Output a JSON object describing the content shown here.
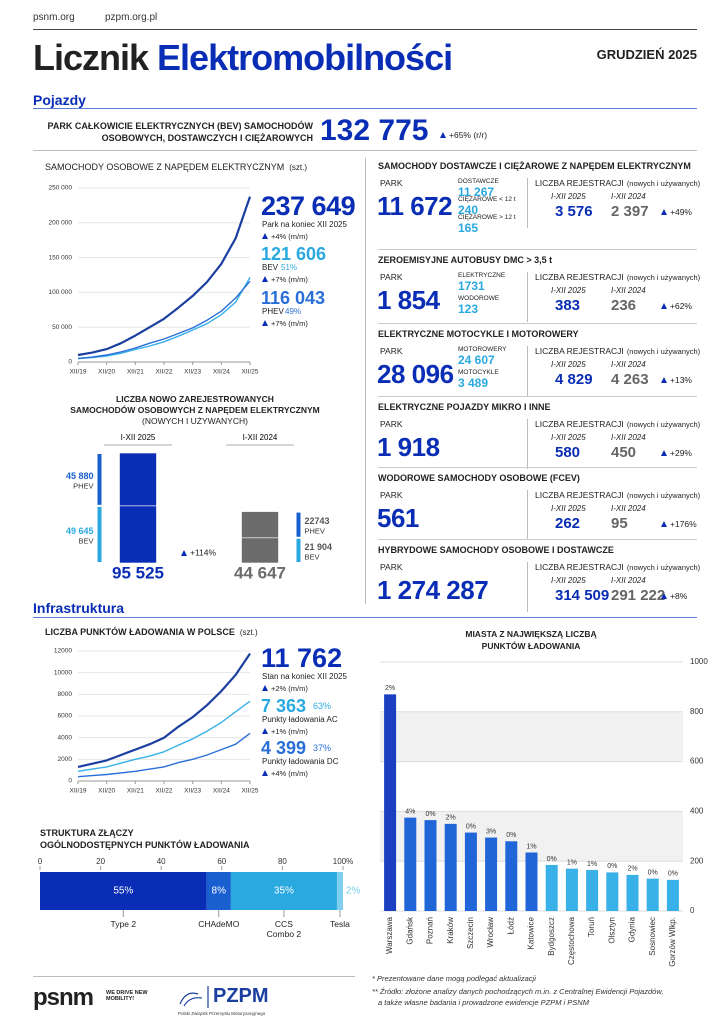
{
  "header": {
    "links": [
      "psnm.org",
      "pzpm.org.pl"
    ],
    "title": [
      "Licznik",
      "Elektromobilności"
    ],
    "date": "GRUDZIEŃ 2025"
  },
  "vehicles": {
    "heading": "Pojazdy",
    "bev_park": {
      "label": [
        "PARK CAŁKOWICIE ELEKTRYCZNYCH (BEV) SAMOCHODÓW",
        "OSOBOWYCH, DOSTAWCZYCH I CIĘŻAROWYCH"
      ],
      "value": "132 775",
      "change": "+65% (r/r)"
    },
    "passenger": {
      "total": "237 649",
      "total_label": "Park na koniec XII 2025",
      "total_change": "+4% (m/m)",
      "bev": "121 606",
      "bev_name": "BEV",
      "bev_share": "51%",
      "bev_change": "+7% (m/m)",
      "phev": "116 043",
      "phev_name": "PHEV",
      "phev_share": "49%",
      "phev_change": "+7% (m/m)"
    },
    "sections": [
      {
        "title": "SAMOCHODY DOSTAWCZE I CIĘŻAROWE Z NAPĘDEM ELEKTRYCZNYM",
        "park_label": "PARK",
        "park": "11 672",
        "breakdown": [
          {
            "label": "DOSTAWCZE",
            "value": "11 267"
          },
          {
            "label": "CIĘŻAROWE < 12 t",
            "value": "240"
          },
          {
            "label": "CIĘŻAROWE > 12 t",
            "value": "165"
          }
        ],
        "reg_label": "LICZBA REJESTRACJI",
        "reg_note": "(nowych i używanych)",
        "periods": [
          "I-XII 2025",
          "I-XII 2024"
        ],
        "registrations": [
          "3 576",
          "2 397"
        ],
        "change": "+49%"
      },
      {
        "title": "ZEROEMISYJNE AUTOBUSY DMC > 3,5 t",
        "park_label": "PARK",
        "park": "1 854",
        "breakdown": [
          {
            "label": "ELEKTRYCZNE",
            "value": "1731"
          },
          {
            "label": "WODOROWE",
            "value": "123"
          }
        ],
        "reg_label": "LICZBA REJESTRACJI",
        "reg_note": "(nowych i używanych)",
        "periods": [
          "I-XII 2025",
          "I-XII 2024"
        ],
        "registrations": [
          "383",
          "236"
        ],
        "change": "+62%"
      },
      {
        "title": "ELEKTRYCZNE MOTOCYKLE I MOTOROWERY",
        "park_label": "PARK",
        "park": "28 096",
        "breakdown": [
          {
            "label": "MOTOROWERY",
            "value": "24 607"
          },
          {
            "label": "MOTOCYKLE",
            "value": "3 489"
          }
        ],
        "reg_label": "LICZBA REJESTRACJI",
        "reg_note": "(nowych i używanych)",
        "periods": [
          "I-XII 2025",
          "I-XII 2024"
        ],
        "registrations": [
          "4 829",
          "4 263"
        ],
        "change": "+13%"
      },
      {
        "title": "ELEKTRYCZNE POJAZDY MIKRO I INNE",
        "park_label": "PARK",
        "park": "1 918",
        "breakdown": [],
        "reg_label": "LICZBA REJESTRACJI",
        "reg_note": "(nowych i używanych)",
        "periods": [
          "I-XII 2025",
          "I-XII 2024"
        ],
        "registrations": [
          "580",
          "450"
        ],
        "change": "+29%"
      },
      {
        "title": "WODOROWE SAMOCHODY OSOBOWE (FCEV)",
        "park_label": "PARK",
        "park": "561",
        "breakdown": [],
        "reg_label": "LICZBA REJESTRACJI",
        "reg_note": "(nowych i używanych)",
        "periods": [
          "I-XII 2025",
          "I-XII 2024"
        ],
        "registrations": [
          "262",
          "95"
        ],
        "change": "+176%"
      },
      {
        "title": "HYBRYDOWE SAMOCHODY OSOBOWE I DOSTAWCZE",
        "park_label": "PARK",
        "park": "1 274 287",
        "breakdown": [],
        "reg_label": "LICZBA REJESTRACJI",
        "reg_note": "(nowych i używanych)",
        "periods": [
          "I-XII 2025",
          "I-XII 2024"
        ],
        "registrations": [
          "314 509",
          "291 222"
        ],
        "change": "+8%"
      }
    ]
  },
  "infrastructure": {
    "heading": "Infrastruktura",
    "charging": {
      "total": "11 762",
      "total_label": "Stan na koniec XII 2025",
      "total_change": "+2% (m/m)",
      "ac": "7 363",
      "ac_share": "63%",
      "ac_label": "Punkty ładowania AC",
      "ac_change": "+1% (m/m)",
      "dc": "4 399",
      "dc_share": "37%",
      "dc_label": "Punkty ładowania DC",
      "dc_change": "+4% (m/m)"
    }
  },
  "footer": {
    "notes": [
      "* Prezentowane dane mogą podlegać aktualizacji",
      "** Źródło: złożone analizy danych pochodzących m.in. z Centralnej Ewidencji Pojazdów,",
      "a także własne badania i prowadzone ewidencje PZPM i PSNM"
    ],
    "psnm_logo": "psnm",
    "psnm_tagline": "WE DRIVE NEW MOBILITY!",
    "pzpm_logo": "PZPM",
    "pzpm_name": "Polski Związek Przemysłu Motoryzacyjnego"
  },
  "chart_data": [
    {
      "type": "line",
      "title": "SAMOCHODY OSOBOWE Z NAPĘDEM ELEKTRYCZNYM",
      "unit": "(szt.)",
      "categories": [
        "XII/19",
        null,
        "XII/20",
        null,
        "XII/21",
        null,
        "XII/22",
        null,
        "XII/23",
        null,
        "XII/24",
        null,
        "XII/25"
      ],
      "series": [
        {
          "color": "#1a3fa0",
          "values": [
            10000,
            13500,
            18500,
            27000,
            38000,
            50000,
            62000,
            78000,
            95000,
            115000,
            141000,
            178000,
            237649
          ]
        },
        {
          "color": "#38b0e8",
          "values": [
            5000,
            6500,
            8500,
            12500,
            18000,
            23000,
            29000,
            37000,
            46000,
            55000,
            68000,
            86000,
            121606
          ]
        },
        {
          "color": "#2a6fd8",
          "values": [
            5000,
            7000,
            10000,
            14500,
            20000,
            27000,
            33000,
            41000,
            49000,
            60000,
            73000,
            92000,
            116043
          ]
        }
      ],
      "ylim": [
        0,
        250000
      ],
      "yticks": [
        0,
        {
          "value": 50000,
          "label": "50 000"
        },
        {
          "value": 100000,
          "label": "100 000"
        },
        {
          "value": 150000,
          "label": "150 000"
        },
        {
          "value": 200000,
          "label": "200 000"
        },
        {
          "value": 250000,
          "label": "250 000"
        }
      ],
      "grid": true
    },
    {
      "type": "stacked-bar",
      "title_lines": [
        "LICZBA NOWO ZAREJESTROWANYCH",
        "SAMOCHODÓW OSOBOWYCH Z NAPĘDEM ELEKTRYCZNYM",
        "(NOWYCH I UŻYWANYCH)"
      ],
      "categories": [
        "I-XII 2025",
        "I-XII 2024"
      ],
      "bar_colors": [
        "#0a2db5",
        "#6b6b6b"
      ],
      "series": [
        {
          "name": "BEV",
          "color": "#2aa8e0",
          "values": [
            49645,
            21904
          ],
          "value_labels": [
            "49 645",
            "21 904"
          ]
        },
        {
          "name": "PHEV",
          "color": "#1a5fd0",
          "values": [
            45880,
            22743
          ],
          "value_labels": [
            "45 880",
            "22743"
          ]
        }
      ],
      "totals": [
        95525,
        44647
      ],
      "total_labels": [
        "95 525",
        "44 647"
      ],
      "change": "+114%"
    },
    {
      "type": "line",
      "title": "LICZBA PUNKTÓW ŁADOWANIA W POLSCE",
      "unit": "(szt.)",
      "categories": [
        "XII/19",
        null,
        "XII/20",
        null,
        "XII/21",
        null,
        "XII/22",
        null,
        "XII/23",
        null,
        "XII/24",
        null,
        "XII/25"
      ],
      "series": [
        {
          "color": "#1a3fa0",
          "values": [
            1300,
            1600,
            1900,
            2400,
            2900,
            3400,
            4000,
            5000,
            5900,
            7000,
            8300,
            9800,
            11762
          ]
        },
        {
          "color": "#38b0e8",
          "values": [
            900,
            1100,
            1300,
            1650,
            2000,
            2300,
            2700,
            3300,
            3900,
            4600,
            5400,
            6400,
            7363
          ]
        },
        {
          "color": "#2a6fd8",
          "values": [
            400,
            500,
            600,
            750,
            900,
            1100,
            1300,
            1700,
            2000,
            2400,
            2900,
            3400,
            4399
          ]
        }
      ],
      "ylim": [
        0,
        12000
      ],
      "yticks": [
        0,
        2000,
        4000,
        6000,
        8000,
        10000,
        12000
      ],
      "grid": true
    },
    {
      "type": "stacked-hbar",
      "title_lines": [
        "STRUKTURA ZŁĄCZY",
        "OGÓLNODOSTĘPNYCH PUNKTÓW ŁADOWANIA"
      ],
      "categories": [
        "Type 2",
        "CHAdeMO",
        "CCS Combo 2",
        "Tesla"
      ],
      "values": [
        55,
        8,
        35,
        2
      ],
      "value_labels": [
        "55%",
        "8%",
        "35%",
        "2%"
      ],
      "colors": [
        "#0a2db5",
        "#1a5fd0",
        "#2aa8e0",
        "#7fd0f0"
      ],
      "xlim": [
        0,
        100
      ],
      "xticks": [
        0,
        20,
        40,
        60,
        80,
        {
          "value": 100,
          "label": "100%"
        }
      ]
    },
    {
      "type": "bar",
      "title_lines": [
        "MIASTA Z NAJWIĘKSZĄ LICZBĄ",
        "PUNKTÓW ŁADOWANIA"
      ],
      "categories": [
        "Warszawa",
        "Gdańsk",
        "Poznań",
        "Kraków",
        "Szczecin",
        "Wrocław",
        "Łódź",
        "Katowice",
        "Bydgoszcz",
        "Częstochowa",
        "Toruń",
        "Olsztyn",
        "Gdynia",
        "Sosnowiec",
        "Gorzów Wlkp."
      ],
      "values": [
        870,
        375,
        365,
        350,
        315,
        295,
        280,
        235,
        185,
        170,
        165,
        155,
        145,
        130,
        125
      ],
      "annotations": [
        "2%",
        "4%",
        "0%",
        "2%",
        "0%",
        "3%",
        "0%",
        "1%",
        "0%",
        "1%",
        "1%",
        "0%",
        "2%",
        "0%",
        "0%"
      ],
      "colors": [
        "#1a3fc0",
        "#2066d8",
        "#2066d8",
        "#2066d8",
        "#2066d8",
        "#2066d8",
        "#2066d8",
        "#2066d8",
        "#38b0e8",
        "#38b0e8",
        "#38b0e8",
        "#38b0e8",
        "#38b0e8",
        "#38b0e8",
        "#38b0e8"
      ],
      "ylim": [
        0,
        1000
      ],
      "yticks": [
        0,
        200,
        400,
        600,
        800,
        1000
      ],
      "grid": true
    }
  ]
}
